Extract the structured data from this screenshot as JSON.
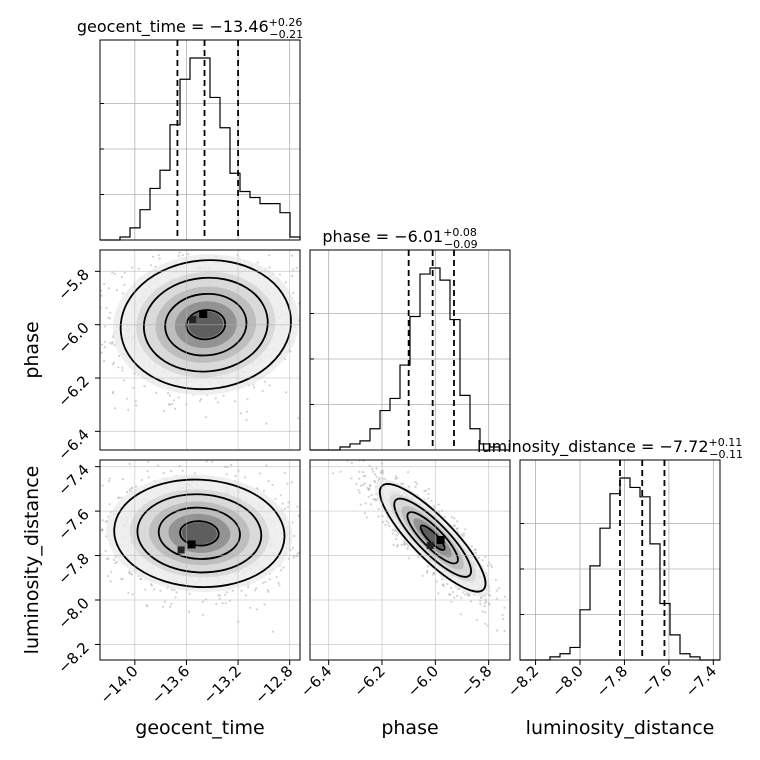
{
  "chart_data": {
    "type": "corner",
    "parameters": [
      {
        "name": "geocent_time",
        "axis_label": "geocent_time",
        "title": {
          "text": "geocent_time = −13.46",
          "upper": "+0.26",
          "lower": "−0.21"
        },
        "range": [
          -14.27,
          -12.72
        ],
        "ticks": [
          -14.0,
          -13.6,
          -13.2,
          -12.8
        ],
        "tick_labels": [
          "−14.0",
          "−13.6",
          "−13.2",
          "−12.8"
        ],
        "quantiles": [
          -13.67,
          -13.46,
          -13.2
        ],
        "hist_edges_start": -14.27,
        "hist_bin_width": 0.0775,
        "hist_counts": [
          0,
          0,
          1,
          4,
          10,
          17,
          23,
          38,
          53,
          60,
          60,
          47,
          37,
          22,
          16,
          14,
          12,
          12,
          9,
          1
        ]
      },
      {
        "name": "phase",
        "axis_label": "phase",
        "title": {
          "text": "phase = −6.01",
          "upper": "+0.08",
          "lower": "−0.09"
        },
        "range": [
          -6.47,
          -5.72
        ],
        "ticks": [
          -6.4,
          -6.2,
          -6.0,
          -5.8
        ],
        "tick_labels": [
          "−6.4",
          "−6.2",
          "−6.0",
          "−5.8"
        ],
        "quantiles": [
          -6.1,
          -6.01,
          -5.93
        ],
        "hist_edges_start": -6.47,
        "hist_bin_width": 0.0375,
        "hist_counts": [
          0,
          0,
          0,
          1,
          2,
          3,
          7,
          13,
          17,
          28,
          44,
          58,
          60,
          56,
          43,
          18,
          7,
          2,
          1,
          0
        ]
      },
      {
        "name": "luminosity_distance",
        "axis_label": "luminosity_distance",
        "title": {
          "text": "luminosity_distance = −7.72",
          "upper": "+0.11",
          "lower": "−0.11"
        },
        "range": [
          -8.27,
          -7.37
        ],
        "ticks": [
          -8.2,
          -8.0,
          -7.8,
          -7.6,
          -7.4
        ],
        "tick_labels": [
          "−8.2",
          "−8.0",
          "−7.8",
          "−7.6",
          "−7.4"
        ],
        "quantiles": [
          -7.82,
          -7.72,
          -7.62
        ],
        "hist_edges_start": -8.27,
        "hist_bin_width": 0.045,
        "hist_counts": [
          0,
          0,
          0,
          1,
          2,
          4,
          16,
          30,
          42,
          53,
          58,
          55,
          52,
          37,
          18,
          8,
          2,
          1,
          0,
          0
        ]
      }
    ],
    "y_ticks": {
      "phase": {
        "ticks": [
          -5.8,
          -6.0,
          -6.2,
          -6.4
        ],
        "tick_labels": [
          "−5.8",
          "−6.0",
          "−6.2",
          "−6.4"
        ]
      },
      "luminosity_distance": {
        "ticks": [
          -7.4,
          -7.6,
          -7.8,
          -8.0,
          -8.2
        ],
        "tick_labels": [
          "−7.4",
          "−7.6",
          "−7.8",
          "−8.0",
          "−8.2"
        ]
      }
    },
    "joint": [
      {
        "x": "geocent_time",
        "y": "phase",
        "mean": [
          -13.45,
          -6.0
        ],
        "std": [
          0.3,
          0.11
        ],
        "corr": 0.05,
        "peak": [
          -13.47,
          -5.96
        ]
      },
      {
        "x": "geocent_time",
        "y": "luminosity_distance",
        "mean": [
          -13.5,
          -7.7
        ],
        "std": [
          0.3,
          0.11
        ],
        "corr": -0.05,
        "peak": [
          -13.56,
          -7.75
        ]
      },
      {
        "x": "phase",
        "y": "luminosity_distance",
        "mean": [
          -6.01,
          -7.72
        ],
        "std": [
          0.09,
          0.11
        ],
        "corr": -0.85,
        "peak": [
          -5.98,
          -7.73
        ]
      }
    ],
    "grid": true
  }
}
